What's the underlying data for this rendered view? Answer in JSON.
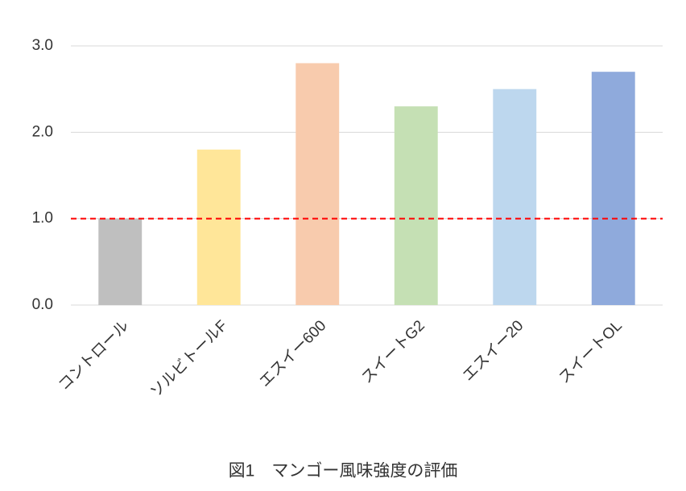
{
  "chart_data": {
    "type": "bar",
    "title": "図1　マンゴー風味強度の評価",
    "categories": [
      "コントロール",
      "ソルビトールF",
      "エスイー600",
      "スイートG2",
      "エスイー20",
      "スイートOL"
    ],
    "values": [
      1.0,
      1.8,
      2.8,
      2.3,
      2.5,
      2.7
    ],
    "colors": [
      "#bfbfbf",
      "#ffe699",
      "#f8cbad",
      "#c5e0b4",
      "#bdd7ee",
      "#8faadc"
    ],
    "ylim": [
      0,
      3
    ],
    "yticks": [
      {
        "value": 0,
        "label": "0.0"
      },
      {
        "value": 1,
        "label": "1.0"
      },
      {
        "value": 2,
        "label": "2.0"
      },
      {
        "value": 3,
        "label": "3.0"
      }
    ],
    "grid": true,
    "reference_line": {
      "value": 1,
      "color": "#ff0000"
    }
  }
}
